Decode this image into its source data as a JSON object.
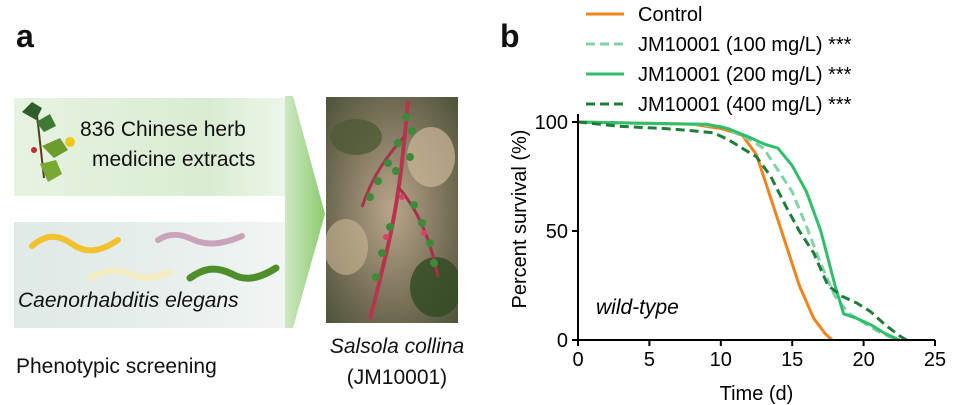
{
  "panel_a": {
    "letter": "a",
    "herb_line1": "836 Chinese herb",
    "herb_line2": "medicine extracts",
    "worm_species": "Caenorhabditis elegans",
    "screening_label": "Phenotypic screening",
    "species_name": "Salsola collina",
    "species_code": "(JM10001)",
    "worm_colors": [
      "#f2c12e",
      "#c9a3b9",
      "#fbf3d2",
      "#4e8f2c"
    ]
  },
  "panel_b": {
    "letter": "b"
  },
  "chart_data": {
    "type": "line",
    "xlabel": "Time (d)",
    "ylabel": "Percent survival (%)",
    "xlim": [
      0,
      25
    ],
    "ylim": [
      0,
      100
    ],
    "xticks": [
      0,
      5,
      10,
      15,
      20,
      25
    ],
    "yticks": [
      0,
      50,
      100
    ],
    "grid": false,
    "legend_position": "top-right",
    "annotation": "wild-type",
    "series": [
      {
        "name": "Control",
        "significance": "",
        "color": "#f0831e",
        "dash": "solid",
        "points": [
          [
            0,
            100
          ],
          [
            4,
            99.5
          ],
          [
            8,
            99
          ],
          [
            10,
            97
          ],
          [
            11.5,
            94
          ],
          [
            12.5,
            85
          ],
          [
            13.5,
            65
          ],
          [
            14.5,
            45
          ],
          [
            15.5,
            25
          ],
          [
            16.5,
            10
          ],
          [
            17.3,
            3
          ],
          [
            17.8,
            0
          ]
        ]
      },
      {
        "name": "JM10001 (100 mg/L)",
        "significance": "***",
        "color": "#7fd3a7",
        "dash": "dashed",
        "points": [
          [
            0,
            100
          ],
          [
            4,
            99.5
          ],
          [
            8,
            99
          ],
          [
            10,
            98
          ],
          [
            11,
            95
          ],
          [
            12,
            92
          ],
          [
            13,
            88
          ],
          [
            14,
            78
          ],
          [
            15,
            68
          ],
          [
            16,
            52
          ],
          [
            17,
            35
          ],
          [
            18,
            20
          ],
          [
            19,
            12
          ],
          [
            20,
            8
          ],
          [
            21,
            4
          ],
          [
            22,
            1
          ],
          [
            22.5,
            0
          ]
        ]
      },
      {
        "name": "JM10001 (200 mg/L)",
        "significance": "***",
        "color": "#2fbf6a",
        "dash": "solid",
        "points": [
          [
            0,
            100
          ],
          [
            4,
            99.5
          ],
          [
            9,
            99
          ],
          [
            10.5,
            97
          ],
          [
            12,
            93
          ],
          [
            13,
            90
          ],
          [
            14,
            88
          ],
          [
            15,
            80
          ],
          [
            16,
            68
          ],
          [
            17,
            50
          ],
          [
            18,
            25
          ],
          [
            18.6,
            12
          ],
          [
            19.5,
            10
          ],
          [
            20.5,
            7
          ],
          [
            21.5,
            3
          ],
          [
            22.5,
            0
          ]
        ]
      },
      {
        "name": "JM10001 (400 mg/L)",
        "significance": "***",
        "color": "#1e7d3a",
        "dash": "dashed",
        "points": [
          [
            0,
            100
          ],
          [
            3,
            98
          ],
          [
            6,
            97
          ],
          [
            8,
            96
          ],
          [
            9.5,
            95
          ],
          [
            10.5,
            92
          ],
          [
            11.5,
            88
          ],
          [
            12.5,
            84
          ],
          [
            13.5,
            75
          ],
          [
            14.5,
            62
          ],
          [
            15.5,
            50
          ],
          [
            16.5,
            40
          ],
          [
            17.5,
            25
          ],
          [
            18.5,
            20
          ],
          [
            19.5,
            17
          ],
          [
            20.5,
            13
          ],
          [
            21.5,
            7
          ],
          [
            22.5,
            2
          ],
          [
            23,
            0
          ]
        ]
      }
    ]
  }
}
